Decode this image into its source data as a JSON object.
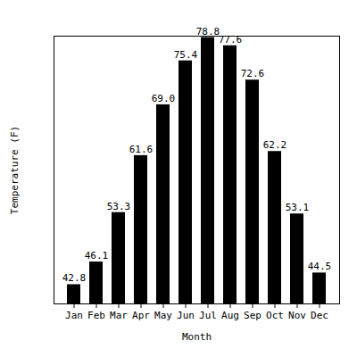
{
  "chart_data": {
    "type": "bar",
    "x_label": "Month",
    "y_label": "Temperature (F)",
    "categories": [
      "Jan",
      "Feb",
      "Mar",
      "Apr",
      "May",
      "Jun",
      "Jul",
      "Aug",
      "Sep",
      "Oct",
      "Nov",
      "Dec"
    ],
    "values": [
      42.8,
      46.1,
      53.3,
      61.6,
      69.0,
      75.4,
      78.8,
      77.6,
      72.6,
      62.2,
      53.1,
      44.5
    ],
    "value_labels": [
      "42.8",
      "46.1",
      "53.3",
      "61.6",
      "69.0",
      "75.4",
      "78.8",
      "77.6",
      "72.6",
      "62.2",
      "53.1",
      "44.5"
    ],
    "color": "#000000",
    "ylim": [
      40,
      79
    ],
    "grid": false,
    "data_labels": true,
    "tick_labels": "x"
  }
}
